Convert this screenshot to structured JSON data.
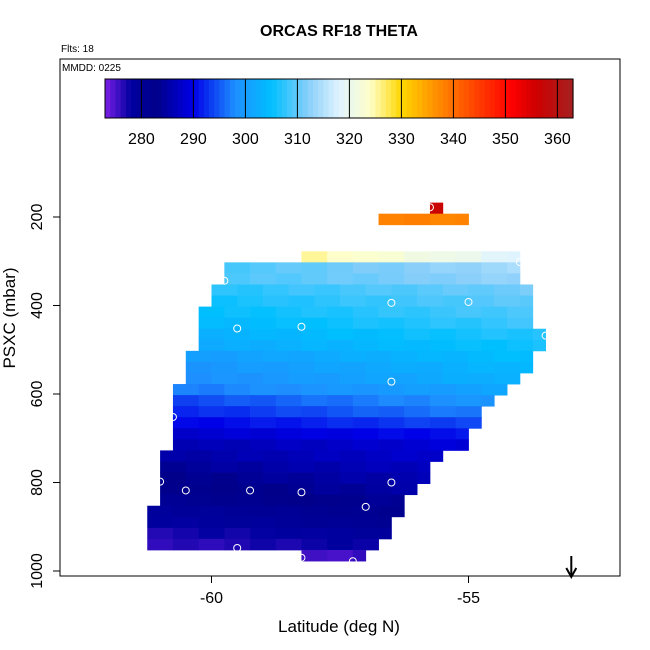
{
  "chart_data": {
    "type": "heatmap",
    "title": "ORCAS RF18 THETA",
    "subtitle_flts": "Flts: 18",
    "subtitle_mmdd": "MMDD: 0225",
    "xlabel": "Latitude (deg N)",
    "ylabel": "PSXC (mbar)",
    "xlim": [
      -63.0,
      -52.0
    ],
    "ylim": [
      1010,
      0
    ],
    "x_ticks": [
      -60,
      -55
    ],
    "y_ticks": [
      200,
      400,
      600,
      800,
      1000
    ],
    "colorbar": {
      "range": [
        273,
        363
      ],
      "ticks": [
        280,
        290,
        300,
        310,
        320,
        330,
        340,
        350,
        360
      ],
      "stops": [
        [
          273,
          "#7b1fe6"
        ],
        [
          278,
          "#0000a0"
        ],
        [
          283,
          "#00008a"
        ],
        [
          290,
          "#0000e8"
        ],
        [
          298,
          "#1e8fff"
        ],
        [
          305,
          "#00bfff"
        ],
        [
          312,
          "#87cefa"
        ],
        [
          318,
          "#e0f4ff"
        ],
        [
          324,
          "#ffffc8"
        ],
        [
          330,
          "#ffd700"
        ],
        [
          337,
          "#ff8c00"
        ],
        [
          344,
          "#ff4500"
        ],
        [
          351,
          "#ff0000"
        ],
        [
          356,
          "#cd0000"
        ],
        [
          363,
          "#a52020"
        ]
      ]
    },
    "arrow": {
      "x": -53.0,
      "direction": "down"
    },
    "cell_height_mbar": 25,
    "cell_width_deg": 0.5,
    "rows": [
      {
        "p": 180,
        "x0": -55.75,
        "x1": -55.5,
        "v0": 357,
        "v1": 357
      },
      {
        "p": 205,
        "x0": -56.75,
        "x1": -55.0,
        "v0": 338,
        "v1": 338
      },
      {
        "p": 290,
        "x0": -58.25,
        "x1": -54.0,
        "v0": 325,
        "v1": 318
      },
      {
        "p": 315,
        "x0": -59.75,
        "x1": -54.0,
        "v0": 309,
        "v1": 314
      },
      {
        "p": 340,
        "x0": -59.75,
        "x1": -54.0,
        "v0": 309,
        "v1": 313
      },
      {
        "p": 365,
        "x0": -60.0,
        "x1": -53.75,
        "v0": 307,
        "v1": 311
      },
      {
        "p": 390,
        "x0": -60.0,
        "x1": -53.75,
        "v0": 306,
        "v1": 310
      },
      {
        "p": 415,
        "x0": -60.25,
        "x1": -53.75,
        "v0": 305,
        "v1": 309
      },
      {
        "p": 440,
        "x0": -60.25,
        "x1": -53.75,
        "v0": 304,
        "v1": 308
      },
      {
        "p": 465,
        "x0": -60.25,
        "x1": -53.5,
        "v0": 303,
        "v1": 307
      },
      {
        "p": 490,
        "x0": -60.25,
        "x1": -53.5,
        "v0": 302,
        "v1": 306
      },
      {
        "p": 515,
        "x0": -60.5,
        "x1": -53.75,
        "v0": 300,
        "v1": 305
      },
      {
        "p": 540,
        "x0": -60.5,
        "x1": -53.75,
        "v0": 299,
        "v1": 304
      },
      {
        "p": 565,
        "x0": -60.5,
        "x1": -54.0,
        "v0": 298,
        "v1": 303
      },
      {
        "p": 590,
        "x0": -60.75,
        "x1": -54.25,
        "v0": 297,
        "v1": 301
      },
      {
        "p": 615,
        "x0": -60.75,
        "x1": -54.5,
        "v0": 294,
        "v1": 299
      },
      {
        "p": 640,
        "x0": -60.75,
        "x1": -54.75,
        "v0": 292,
        "v1": 297
      },
      {
        "p": 665,
        "x0": -60.75,
        "x1": -54.75,
        "v0": 290,
        "v1": 294
      },
      {
        "p": 690,
        "x0": -60.75,
        "x1": -55.0,
        "v0": 288,
        "v1": 291
      },
      {
        "p": 715,
        "x0": -60.75,
        "x1": -55.0,
        "v0": 286,
        "v1": 289
      },
      {
        "p": 740,
        "x0": -61.0,
        "x1": -55.5,
        "v0": 285,
        "v1": 288
      },
      {
        "p": 765,
        "x0": -61.0,
        "x1": -55.75,
        "v0": 284,
        "v1": 287
      },
      {
        "p": 790,
        "x0": -61.0,
        "x1": -55.75,
        "v0": 283,
        "v1": 286
      },
      {
        "p": 815,
        "x0": -61.0,
        "x1": -56.0,
        "v0": 282,
        "v1": 285
      },
      {
        "p": 840,
        "x0": -61.0,
        "x1": -56.25,
        "v0": 281,
        "v1": 284
      },
      {
        "p": 865,
        "x0": -61.25,
        "x1": -56.25,
        "v0": 279,
        "v1": 282
      },
      {
        "p": 890,
        "x0": -61.25,
        "x1": -56.5,
        "v0": 278,
        "v1": 281
      },
      {
        "p": 915,
        "x0": -61.25,
        "x1": -56.5,
        "v0": 277,
        "v1": 279
      },
      {
        "p": 940,
        "x0": -61.25,
        "x1": -56.75,
        "v0": 276,
        "v1": 278
      },
      {
        "p": 965,
        "x0": -58.25,
        "x1": -57.0,
        "v0": 275,
        "v1": 276
      }
    ],
    "points": [
      [
        -55.75,
        178
      ],
      [
        -54.0,
        302
      ],
      [
        -59.75,
        344
      ],
      [
        -56.5,
        394
      ],
      [
        -55.0,
        392
      ],
      [
        -59.5,
        452
      ],
      [
        -58.25,
        448
      ],
      [
        -53.5,
        468
      ],
      [
        -56.5,
        572
      ],
      [
        -53.75,
        564
      ],
      [
        -60.75,
        652
      ],
      [
        -61.0,
        798
      ],
      [
        -60.5,
        818
      ],
      [
        -59.25,
        818
      ],
      [
        -58.25,
        822
      ],
      [
        -56.5,
        800
      ],
      [
        -57.0,
        855
      ],
      [
        -61.5,
        948
      ],
      [
        -59.5,
        948
      ],
      [
        -58.25,
        970
      ],
      [
        -57.25,
        978
      ],
      [
        -56.25,
        980
      ]
    ]
  }
}
